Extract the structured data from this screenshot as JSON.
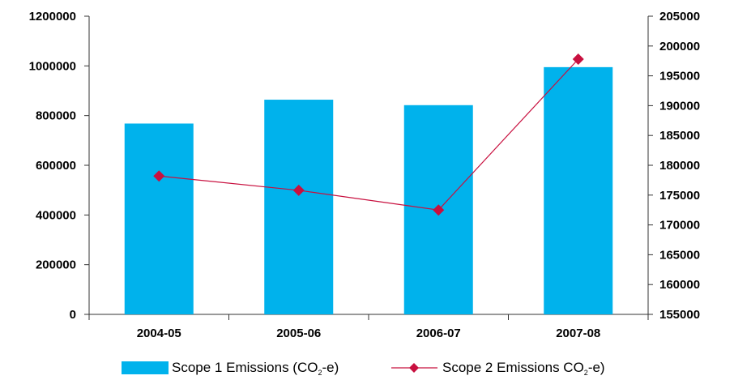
{
  "chart_data": {
    "type": "bar",
    "categories": [
      "2004-05",
      "2005-06",
      "2006-07",
      "2007-08"
    ],
    "series": [
      {
        "name": "Scope 1 Emissions (CO2-e)",
        "type": "bar",
        "axis": "left",
        "color": "#00b2ec",
        "values": [
          768000,
          864000,
          842000,
          995000
        ]
      },
      {
        "name": "Scope 2 Emissions CO2-e)",
        "type": "line",
        "axis": "right",
        "color": "#c8103f",
        "marker": "diamond",
        "values": [
          178200,
          175800,
          172500,
          197800
        ]
      }
    ],
    "y_left": {
      "ylim": [
        0,
        1200000
      ],
      "ticks": [
        "0",
        "200000",
        "400000",
        "600000",
        "800000",
        "1000000",
        "1200000"
      ]
    },
    "y_right": {
      "ylim": [
        155000,
        205000
      ],
      "ticks": [
        "155000",
        "160000",
        "165000",
        "170000",
        "175000",
        "180000",
        "185000",
        "190000",
        "195000",
        "200000",
        "205000"
      ]
    },
    "grid": false,
    "legend": {
      "placement": "bottom",
      "items": [
        {
          "pre": "Scope 1 Emissions (CO",
          "sub": "2",
          "post": "-e)"
        },
        {
          "pre": "Scope 2 Emissions CO",
          "sub": "2",
          "post": "-e)"
        }
      ]
    }
  }
}
